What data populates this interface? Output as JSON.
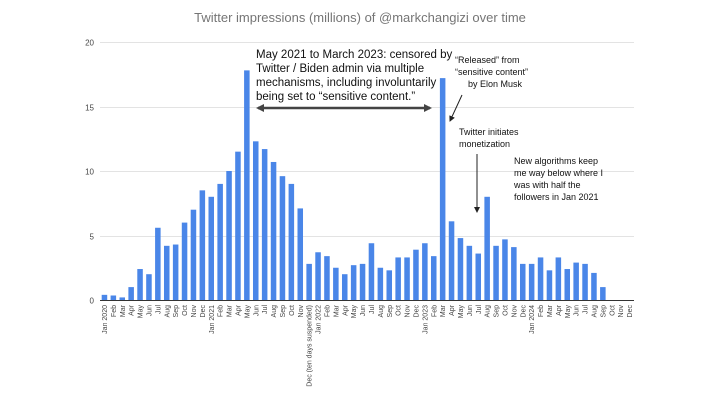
{
  "chart_data": {
    "type": "bar",
    "title": "Twitter impressions (millions) of @markchangizi over time",
    "ylim": [
      0,
      20
    ],
    "yticks": [
      0,
      5,
      10,
      15,
      20
    ],
    "grid": true,
    "bar_color": "#4a86e8",
    "categories": [
      "Jan 2020",
      "Feb",
      "Mar",
      "Apr",
      "May",
      "Jun",
      "Jul",
      "Aug",
      "Sep",
      "Oct",
      "Nov",
      "Dec",
      "Jan 2021",
      "Feb",
      "Mar",
      "Apr",
      "May",
      "Jun",
      "Jul",
      "Aug",
      "Sep",
      "Oct",
      "Nov",
      "Dec (ten days suspended)",
      "Jan 2022",
      "Feb",
      "Mar",
      "Apr",
      "May",
      "Jun",
      "Jul",
      "Aug",
      "Sep",
      "Oct",
      "Nov",
      "Dec",
      "Jan 2023",
      "Feb",
      "Mar",
      "Apr",
      "May",
      "Jun",
      "Jul",
      "Aug",
      "Sep",
      "Oct",
      "Nov",
      "Dec",
      "Jan 2024",
      "Feb",
      "Mar",
      "Apr",
      "May",
      "Jun",
      "Jul",
      "Aug",
      "Sep",
      "Oct",
      "Nov",
      "Dec"
    ],
    "values": [
      0.4,
      0.35,
      0.2,
      1.0,
      2.4,
      2.0,
      5.6,
      4.2,
      4.3,
      6.0,
      7.0,
      8.5,
      8.0,
      9.0,
      10.0,
      11.5,
      17.8,
      12.3,
      11.7,
      10.7,
      9.6,
      9.0,
      7.1,
      2.8,
      3.7,
      3.4,
      2.5,
      2.0,
      2.7,
      2.8,
      4.4,
      2.5,
      2.3,
      3.3,
      3.3,
      3.9,
      4.4,
      3.4,
      17.2,
      6.1,
      4.8,
      4.2,
      3.6,
      8.0,
      4.2,
      4.7,
      4.1,
      2.8,
      2.8,
      3.3,
      2.3,
      3.3,
      2.4,
      2.9,
      2.8,
      2.1,
      1.0,
      0,
      0,
      0
    ],
    "annotations": [
      {
        "lines": [
          "May 2021 to March 2023: censored by",
          "Twitter / Biden admin via multiple",
          "mechanisms, including involuntarily",
          "being set to “sensitive content.”"
        ]
      },
      {
        "lines": [
          "“Released” from",
          "“sensitive content”",
          "by Elon Musk"
        ]
      },
      {
        "lines": [
          "Twitter initiates",
          "monetization"
        ]
      },
      {
        "lines": [
          "New algorithms keep",
          "me way below where I",
          "was with half the",
          "followers in Jan 2021"
        ]
      }
    ]
  }
}
